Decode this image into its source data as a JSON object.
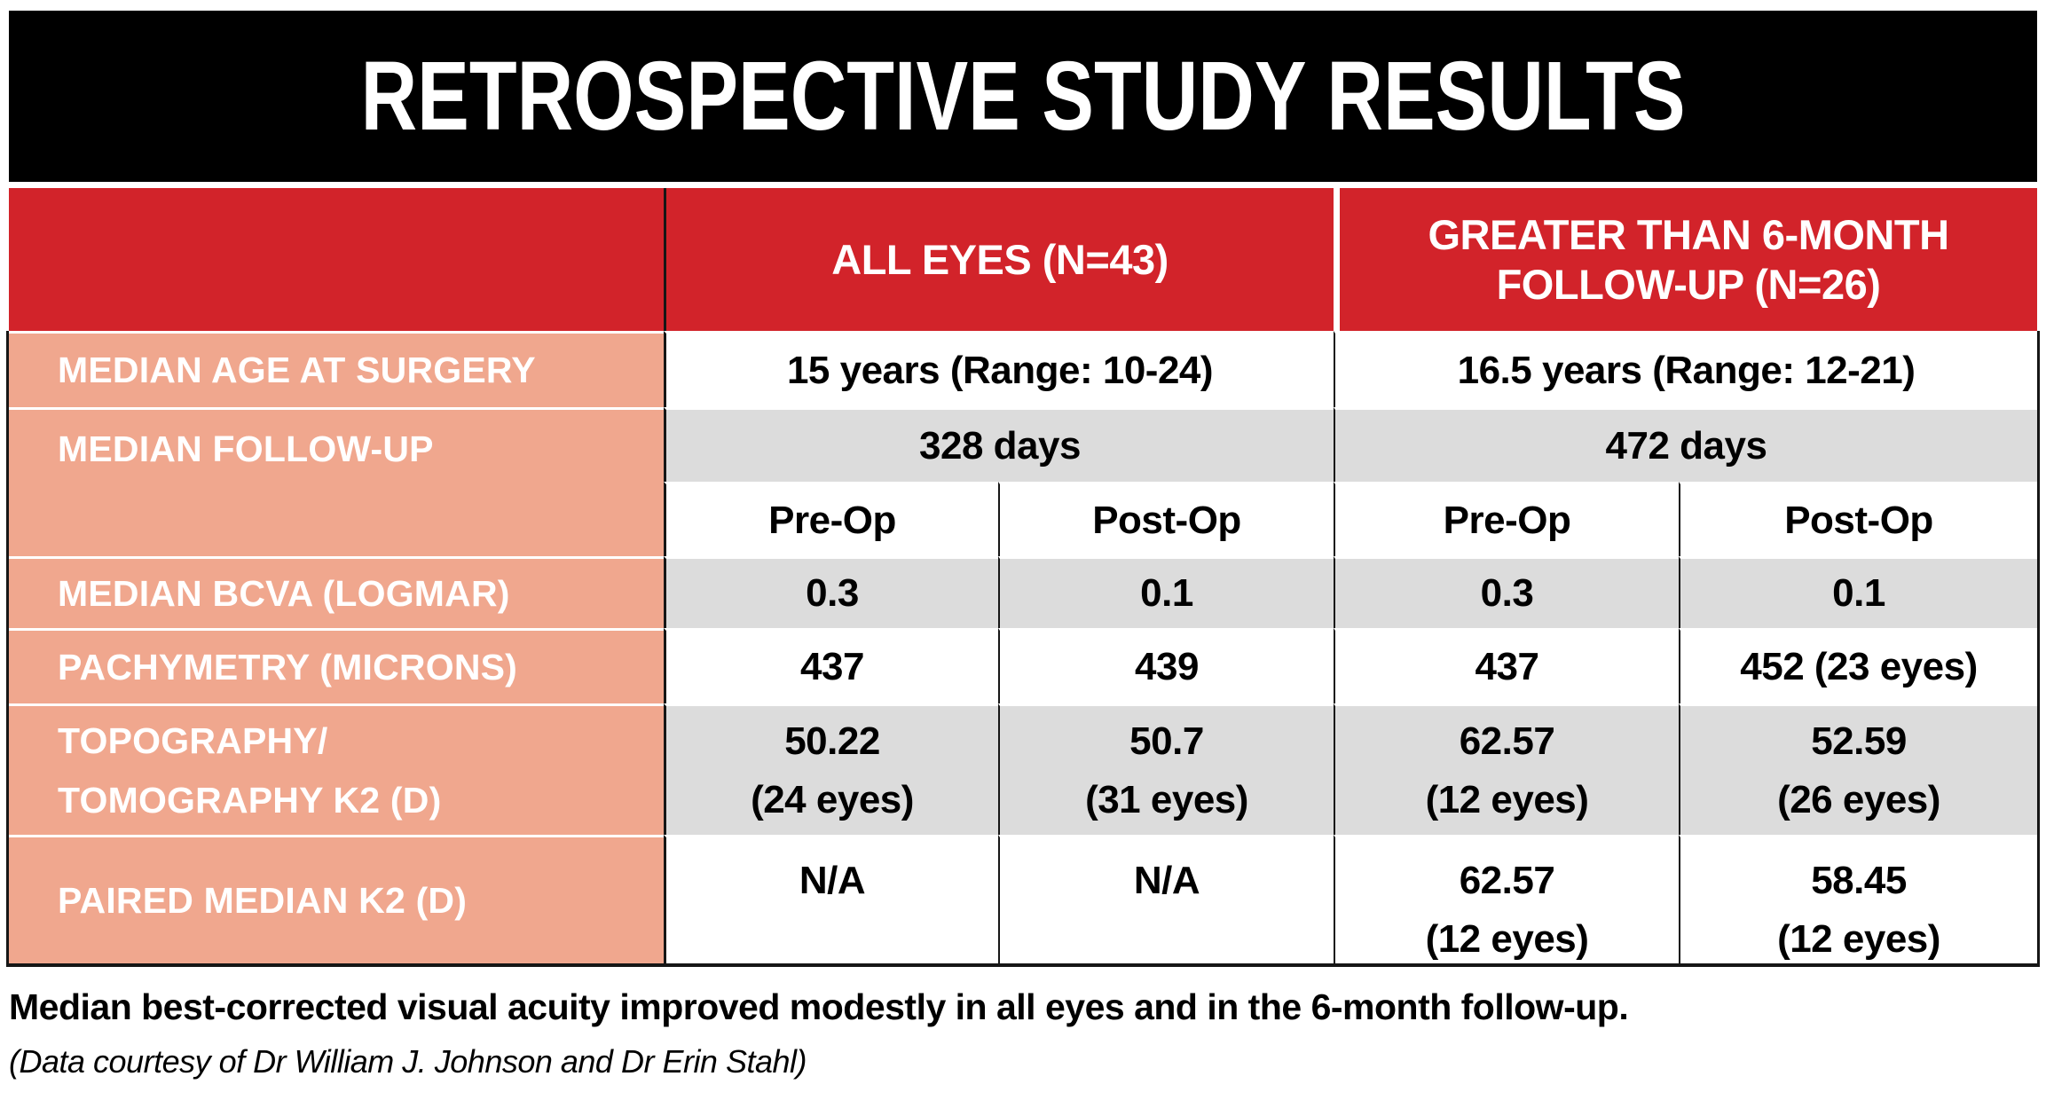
{
  "title": "RETROSPECTIVE STUDY RESULTS",
  "table": {
    "header": {
      "all_eyes": "ALL EYES (N=43)",
      "greater": "GREATER THAN 6-MONTH FOLLOW-UP (N=26)"
    },
    "subheader": [
      "Pre-Op",
      "Post-Op",
      "Pre-Op",
      "Post-Op"
    ],
    "age": {
      "label": "MEDIAN AGE AT SURGERY",
      "all": "15 years (Range: 10-24)",
      "gt": "16.5 years (Range: 12-21)"
    },
    "followup": {
      "label": "MEDIAN FOLLOW-UP",
      "all": "328 days",
      "gt": "472 days"
    },
    "bcva": {
      "label": "MEDIAN BCVA (LOGMAR)",
      "values": [
        "0.3",
        "0.1",
        "0.3",
        "0.1"
      ]
    },
    "pachymetry": {
      "label": "PACHYMETRY (MICRONS)",
      "values": [
        "437",
        "439",
        "437",
        "452 (23 eyes)"
      ]
    },
    "topography": {
      "label_line1": "TOPOGRAPHY/",
      "label_line2": "TOMOGRAPHY K2 (D)",
      "values": [
        "50.22",
        "50.7",
        "62.57",
        "52.59"
      ],
      "notes": [
        "(24 eyes)",
        "(31 eyes)",
        "(12 eyes)",
        "(26 eyes)"
      ]
    },
    "paired": {
      "label": "PAIRED MEDIAN K2 (D)",
      "values": [
        "N/A",
        "N/A",
        "62.57",
        "58.45"
      ],
      "notes": [
        "(12 eyes)",
        "(12 eyes)"
      ]
    }
  },
  "caption": "Median best-corrected visual acuity improved modestly in all eyes and in the 6-month follow-up.",
  "credit": "(Data courtesy of Dr William J. Johnson and Dr Erin Stahl)",
  "colors": {
    "title_bar": "#000000",
    "header_red": "#d2232a",
    "label_salmon": "#f0a78e",
    "row_gray": "#dcdcdc",
    "grid_line": "#161616"
  },
  "chart_data": {
    "type": "table",
    "title": "RETROSPECTIVE STUDY RESULTS",
    "column_groups": [
      {
        "label": "ALL EYES (N=43)",
        "columns": [
          "Pre-Op",
          "Post-Op"
        ]
      },
      {
        "label": "GREATER THAN 6-MONTH FOLLOW-UP (N=26)",
        "columns": [
          "Pre-Op",
          "Post-Op"
        ]
      }
    ],
    "rows": [
      {
        "label": "MEDIAN AGE AT SURGERY",
        "all_eyes": "15 years (Range: 10-24)",
        "gt_6_month": "16.5 years (Range: 12-21)"
      },
      {
        "label": "MEDIAN FOLLOW-UP",
        "all_eyes": "328 days",
        "gt_6_month": "472 days"
      },
      {
        "label": "MEDIAN BCVA (LOGMAR)",
        "values": [
          "0.3",
          "0.1",
          "0.3",
          "0.1"
        ]
      },
      {
        "label": "PACHYMETRY (MICRONS)",
        "values": [
          "437",
          "439",
          "437",
          "452 (23 eyes)"
        ]
      },
      {
        "label": "TOPOGRAPHY/TOMOGRAPHY K2 (D)",
        "values": [
          "50.22 (24 eyes)",
          "50.7 (31 eyes)",
          "62.57 (12 eyes)",
          "52.59 (26 eyes)"
        ]
      },
      {
        "label": "PAIRED MEDIAN K2 (D)",
        "values": [
          "N/A",
          "N/A",
          "62.57 (12 eyes)",
          "58.45 (12 eyes)"
        ]
      }
    ],
    "caption": "Median best-corrected visual acuity improved modestly in all eyes and in the 6-month follow-up.",
    "credit": "(Data courtesy of Dr William J. Johnson and Dr Erin Stahl)"
  }
}
